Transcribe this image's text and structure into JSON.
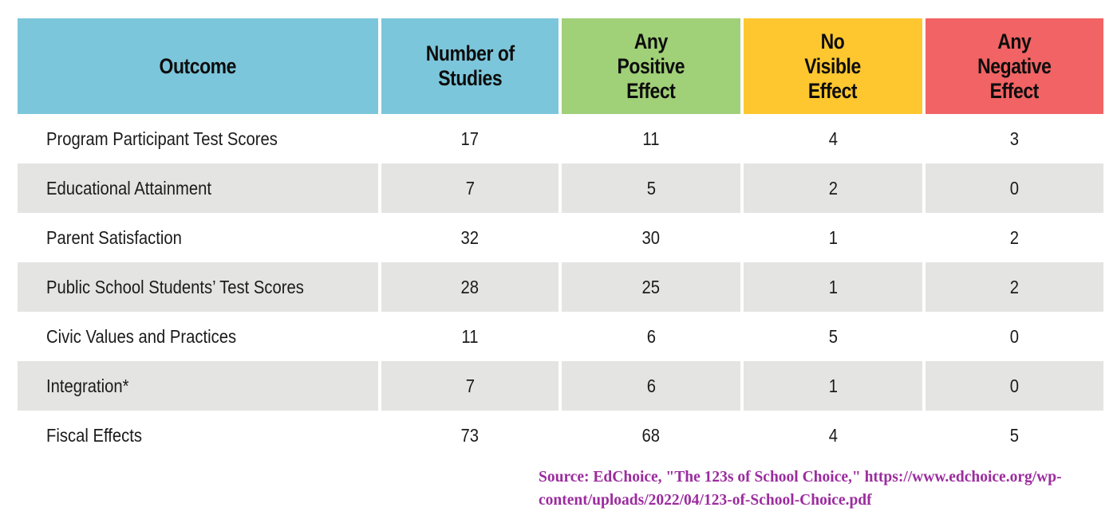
{
  "headers": {
    "outcome": "Outcome",
    "studies": "Number of\nStudies",
    "positive": "Any\nPositive\nEffect",
    "no_effect": "No\nVisible\nEffect",
    "negative": "Any\nNegative\nEffect"
  },
  "colors": {
    "header_blue": "#7cc6db",
    "header_green": "#a0d077",
    "header_yellow": "#ffc72f",
    "header_red": "#f16364",
    "row_stripe_gray": "#e4e4e3",
    "body_text": "#1b1b1b",
    "source_purple": "#9b2c9e"
  },
  "chart_data": {
    "type": "table",
    "columns": [
      "Outcome",
      "Number of Studies",
      "Any Positive Effect",
      "No Visible Effect",
      "Any Negative Effect"
    ],
    "rows": [
      {
        "outcome": "Program Participant Test Scores",
        "values": [
          17,
          11,
          4,
          3
        ]
      },
      {
        "outcome": "Educational Attainment",
        "values": [
          7,
          5,
          2,
          0
        ]
      },
      {
        "outcome": "Parent Satisfaction",
        "values": [
          32,
          30,
          1,
          2
        ]
      },
      {
        "outcome": "Public School Students’ Test Scores",
        "values": [
          28,
          25,
          1,
          2
        ]
      },
      {
        "outcome": "Civic Values and Practices",
        "values": [
          11,
          6,
          5,
          0
        ]
      },
      {
        "outcome": "Integration*",
        "values": [
          7,
          6,
          1,
          0
        ]
      },
      {
        "outcome": "Fiscal Effects",
        "values": [
          73,
          68,
          4,
          5
        ]
      }
    ]
  },
  "source": {
    "text": "Source: EdChoice, \"The 123s of School Choice,\" https://www.edchoice.org/wp-\ncontent/uploads/2022/04/123-of-School-Choice.pdf"
  }
}
